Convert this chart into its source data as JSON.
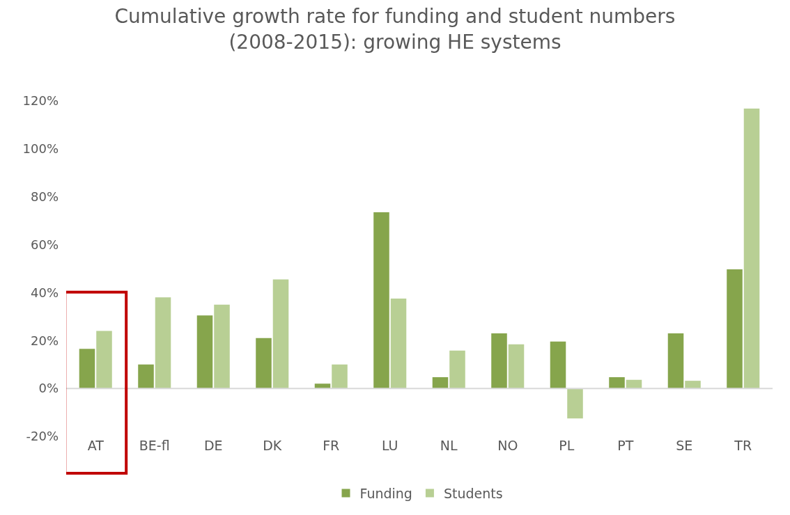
{
  "chart_data": {
    "type": "bar",
    "title": "Cumulative growth rate for funding and student numbers (2008-2015): growing HE systems",
    "categories": [
      "AT",
      "BE-fl",
      "DE",
      "DK",
      "FR",
      "LU",
      "NL",
      "NO",
      "PL",
      "PT",
      "SE",
      "TR"
    ],
    "series": [
      {
        "name": "Funding",
        "color": "#86a54c",
        "values": [
          16.5,
          10,
          30.5,
          21,
          2,
          73.5,
          4.7,
          23,
          19.6,
          4.7,
          23,
          49.7
        ]
      },
      {
        "name": "Students",
        "color": "#b8cf94",
        "values": [
          24,
          38,
          35,
          45.5,
          10,
          37.5,
          15.8,
          18.4,
          -12.5,
          3.6,
          3.2,
          116.8
        ]
      }
    ],
    "ylim": [
      -20,
      120
    ],
    "yticks": [
      {
        "value": -20,
        "label": "-20%"
      },
      {
        "value": 0,
        "label": "0%"
      },
      {
        "value": 20,
        "label": "20%"
      },
      {
        "value": 40,
        "label": "40%"
      },
      {
        "value": 60,
        "label": "60%"
      },
      {
        "value": 80,
        "label": "80%"
      },
      {
        "value": 100,
        "label": "100%"
      },
      {
        "value": 120,
        "label": "120%"
      }
    ],
    "legend": "bottom"
  }
}
